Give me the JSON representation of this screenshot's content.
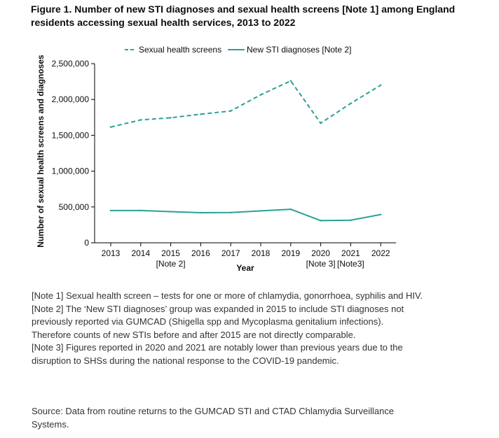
{
  "figure_title": "Figure 1. Number of new STI diagnoses and sexual health screens [Note 1] among England residents accessing sexual health services, 2013 to 2022",
  "colors": {
    "series": "#28a197",
    "axis": "#000000"
  },
  "chart_data": {
    "type": "line",
    "x": [
      2013,
      2014,
      2015,
      2016,
      2017,
      2018,
      2019,
      2020,
      2021,
      2022
    ],
    "x_tick_labels": [
      "2013",
      "2014",
      "2015",
      "2016",
      "2017",
      "2018",
      "2019",
      "2020",
      "2021",
      "2022"
    ],
    "x_tick_sublabels": [
      "",
      "",
      "[Note 2]",
      "",
      "",
      "",
      "",
      "[Note 3]",
      "[Note3]",
      ""
    ],
    "xlabel": "Year",
    "ylabel": "Number of sexual health screens and diagnoses",
    "ylim": [
      0,
      2500000
    ],
    "y_ticks": [
      0,
      500000,
      1000000,
      1500000,
      2000000,
      2500000
    ],
    "y_tick_labels": [
      "0",
      "500,000",
      "1,000,000",
      "1,500,000",
      "2,000,000",
      "2,500,000"
    ],
    "legend_position": "top",
    "grid": false,
    "series": [
      {
        "name": "Sexual health screens",
        "style": "dashed",
        "values": [
          1615000,
          1715000,
          1745000,
          1795000,
          1840000,
          2065000,
          2260000,
          1670000,
          1945000,
          2200000
        ]
      },
      {
        "name": "New STI diagnoses [Note 2]",
        "style": "solid",
        "values": [
          450000,
          450000,
          435000,
          420000,
          422000,
          445000,
          468000,
          310000,
          315000,
          395000
        ]
      }
    ]
  },
  "notes": [
    "[Note 1] Sexual health screen – tests for one or more of chlamydia, gonorrhoea, syphilis and HIV.",
    "[Note 2] The ‘New STI diagnoses’ group was expanded in 2015 to include STI diagnoses not previously reported via GUMCAD (Shigella spp and Mycoplasma genitalium infections). Therefore counts of new STIs before and after 2015 are not directly comparable.",
    "[Note 3] Figures reported in 2020 and 2021 are notably lower than previous years due to the disruption to SHSs during the national response to the COVID-19 pandemic."
  ],
  "source": "Source: Data from routine returns to the GUMCAD STI and CTAD Chlamydia Surveillance Systems."
}
